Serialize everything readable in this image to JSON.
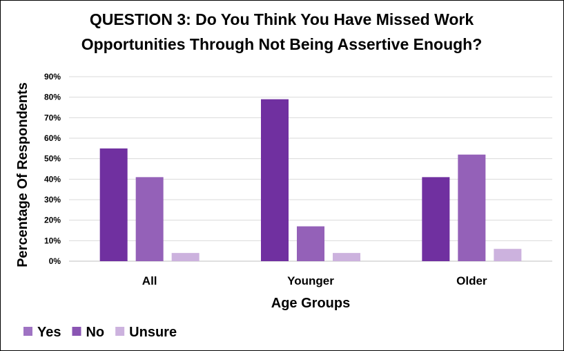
{
  "chart_data": {
    "type": "bar",
    "title_lines": [
      "QUESTION 3: Do You Think You Have Missed Work",
      "Opportunities Through Not Being Assertive Enough?"
    ],
    "xlabel": "Age Groups",
    "ylabel": "Percentage Of Respondents",
    "categories": [
      "All",
      "Younger",
      "Older"
    ],
    "series": [
      {
        "name": "Yes",
        "color": "#7030a0",
        "values": [
          55,
          79,
          41
        ]
      },
      {
        "name": "No",
        "color": "#9461b8",
        "values": [
          41,
          17,
          52
        ]
      },
      {
        "name": "Unsure",
        "color": "#ccb2de",
        "values": [
          4,
          4,
          6
        ]
      }
    ],
    "legend_colors": [
      "#9f73c3",
      "#8a55b3",
      "#ccb2de"
    ],
    "ylim": [
      0,
      90
    ],
    "yticks": [
      0,
      10,
      20,
      30,
      40,
      50,
      60,
      70,
      80,
      90
    ],
    "ytick_labels": [
      "0%",
      "10%",
      "20%",
      "30%",
      "40%",
      "50%",
      "60%",
      "70%",
      "80%",
      "90%"
    ],
    "grid": true,
    "legend_position": "bottom-left"
  }
}
